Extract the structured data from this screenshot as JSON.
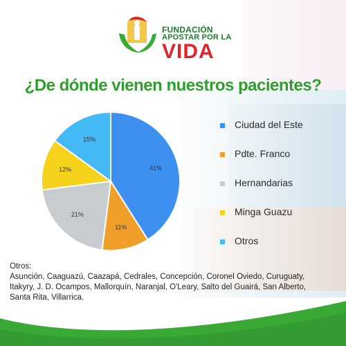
{
  "logo": {
    "line1": "FUNDACIÓN",
    "line2": "APOSTAR POR LA",
    "line3": "VIDA"
  },
  "title": "¿De dónde vienen nuestros pacientes?",
  "chart_data": {
    "type": "pie",
    "title": "¿De dónde vienen nuestros pacientes?",
    "categories": [
      "Ciudad del Este",
      "Pdte. Franco",
      "Hernandarias",
      "Minga Guazu",
      "Otros"
    ],
    "values": [
      41,
      11,
      21,
      12,
      15
    ],
    "labels": [
      "41%",
      "11%",
      "21%",
      "12%",
      "15%"
    ],
    "colors": [
      "#3d8ff0",
      "#f0a02a",
      "#c8ccd0",
      "#f5d31c",
      "#45b9f5"
    ],
    "legend_position": "right"
  },
  "notes": {
    "heading": "Otros:",
    "text": "Asunción, Caaguazú, Caazapá, Cedrales, Concepción, Coronel Oviedo, Curuguaty, Itakyry, J. D. Ocampos, Mallorquín, Naranjal, O'Leary, Salto del Guairá, San Alberto, Santa Rita, Villarrica."
  },
  "colors": {
    "title_green": "#2f9e2f",
    "logo_red": "#e0262b",
    "wave_green": "#3aa935"
  }
}
